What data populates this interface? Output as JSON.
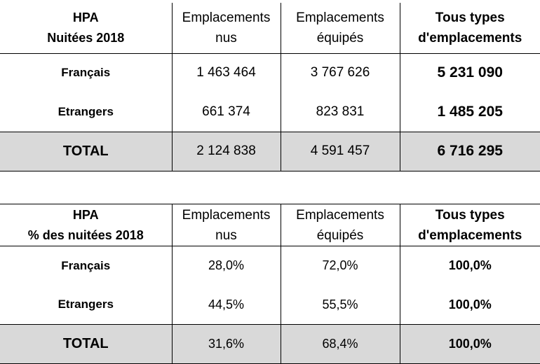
{
  "table1": {
    "title_line1": "HPA",
    "title_line2": "Nuitées 2018",
    "col2_line1": "Emplacements",
    "col2_line2": "nus",
    "col3_line1": "Emplacements",
    "col3_line2": "équipés",
    "col4_line1": "Tous types",
    "col4_line2": "d'emplacements",
    "rows": [
      {
        "label": "Français",
        "nus": "1 463 464",
        "equipes": "3 767 626",
        "total": "5 231 090"
      },
      {
        "label": "Etrangers",
        "nus": "661 374",
        "equipes": "823 831",
        "total": "1 485 205"
      },
      {
        "label": "TOTAL",
        "nus": "2 124 838",
        "equipes": "4 591 457",
        "total": "6 716 295"
      }
    ]
  },
  "table2": {
    "title_line1": "HPA",
    "title_line2": "% des nuitées 2018",
    "col2_line1": "Emplacements",
    "col2_line2": "nus",
    "col3_line1": "Emplacements",
    "col3_line2": "équipés",
    "col4_line1": "Tous types",
    "col4_line2": "d'emplacements",
    "rows": [
      {
        "label": "Français",
        "nus": "28,0%",
        "equipes": "72,0%",
        "total": "100,0%"
      },
      {
        "label": "Etrangers",
        "nus": "44,5%",
        "equipes": "55,5%",
        "total": "100,0%"
      },
      {
        "label": "TOTAL",
        "nus": "31,6%",
        "equipes": "68,4%",
        "total": "100,0%"
      }
    ]
  },
  "colors": {
    "total_row_bg": "#d9d9d9",
    "border": "#000000"
  }
}
